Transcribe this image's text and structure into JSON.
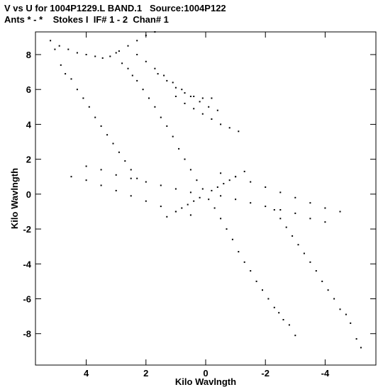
{
  "header": {
    "title_line1": "V vs U for 1004P1229.L BAND.1   Source:1004P122",
    "title_line2": "Ants * - *    Stokes I  IF# 1 - 2  Chan# 1"
  },
  "chart_data": {
    "type": "scatter",
    "title": "V vs U for 1004P1229.L BAND.1   Source:1004P122",
    "subtitle": "Ants * - *    Stokes I  IF# 1 - 2  Chan# 1",
    "xlabel": "Kilo Wavlngth",
    "ylabel": "Kilo Wavlngth",
    "x_reversed": true,
    "xlim": [
      5.7,
      -5.7
    ],
    "ylim": [
      -9.8,
      9.3
    ],
    "xticks": [
      4,
      2,
      0,
      -2,
      -4
    ],
    "xtick_labels": [
      "4",
      "2",
      "0",
      "-2",
      "-4"
    ],
    "yticks": [
      8,
      6,
      4,
      2,
      0,
      -2,
      -4,
      -6,
      -8
    ],
    "ytick_labels": [
      "8",
      "6",
      "4",
      "2",
      "0",
      "-2",
      "-4",
      "-6",
      "-8"
    ],
    "grid": false,
    "marker_color": "#000000",
    "note": "uv-coverage tracks; each baseline drawn as a short radial arc of points and its conjugate (point symmetric about origin)",
    "series": [
      {
        "values": [
          [
            5.2,
            8.8
          ],
          [
            5.05,
            8.3
          ],
          [
            4.85,
            7.4
          ],
          [
            4.7,
            6.9
          ],
          [
            4.5,
            6.6
          ],
          [
            4.3,
            6.0
          ],
          [
            4.1,
            5.5
          ],
          [
            3.9,
            5.0
          ],
          [
            3.7,
            4.4
          ],
          [
            3.5,
            3.9
          ],
          [
            3.3,
            3.4
          ],
          [
            3.1,
            2.9
          ],
          [
            2.9,
            2.4
          ],
          [
            2.7,
            1.9
          ],
          [
            2.5,
            1.4
          ],
          [
            2.3,
            0.9
          ]
        ]
      },
      {
        "values": [
          [
            4.9,
            8.5
          ],
          [
            4.6,
            8.3
          ],
          [
            4.3,
            8.1
          ],
          [
            4.0,
            8.0
          ],
          [
            3.7,
            7.9
          ],
          [
            3.45,
            7.8
          ],
          [
            3.2,
            7.9
          ],
          [
            2.9,
            8.2
          ],
          [
            2.6,
            8.5
          ],
          [
            2.3,
            8.8
          ],
          [
            2.0,
            9.1
          ],
          [
            1.7,
            9.3
          ]
        ]
      },
      {
        "values": [
          [
            3.0,
            8.1
          ],
          [
            2.8,
            7.5
          ],
          [
            2.6,
            7.2
          ],
          [
            2.45,
            6.8
          ],
          [
            2.3,
            6.5
          ],
          [
            2.1,
            6.0
          ],
          [
            1.9,
            5.5
          ],
          [
            1.7,
            5.0
          ],
          [
            1.5,
            4.4
          ],
          [
            1.3,
            3.9
          ],
          [
            1.1,
            3.3
          ],
          [
            0.9,
            2.6
          ],
          [
            0.7,
            2.0
          ],
          [
            0.5,
            1.4
          ],
          [
            0.3,
            0.8
          ],
          [
            0.1,
            0.3
          ]
        ]
      },
      {
        "values": [
          [
            2.3,
            8.0
          ],
          [
            2.0,
            7.6
          ],
          [
            1.7,
            7.2
          ],
          [
            1.4,
            6.8
          ],
          [
            1.1,
            6.4
          ],
          [
            0.8,
            6.0
          ],
          [
            0.5,
            5.6
          ],
          [
            0.2,
            5.3
          ],
          [
            -0.1,
            5.0
          ],
          [
            -0.4,
            4.8
          ]
        ]
      },
      {
        "values": [
          [
            1.6,
            6.9
          ],
          [
            1.3,
            6.5
          ],
          [
            1.0,
            6.1
          ],
          [
            0.7,
            5.8
          ],
          [
            0.4,
            5.6
          ],
          [
            0.1,
            5.5
          ],
          [
            -0.2,
            5.5
          ]
        ]
      },
      {
        "values": [
          [
            1.0,
            5.6
          ],
          [
            0.7,
            5.2
          ],
          [
            0.4,
            4.9
          ],
          [
            0.1,
            4.6
          ],
          [
            -0.2,
            4.3
          ],
          [
            -0.5,
            4.0
          ],
          [
            -0.8,
            3.8
          ],
          [
            -1.1,
            3.6
          ]
        ]
      },
      {
        "values": [
          [
            4.5,
            1.0
          ],
          [
            4.0,
            0.8
          ],
          [
            3.5,
            0.5
          ],
          [
            3.0,
            0.2
          ],
          [
            2.5,
            -0.1
          ],
          [
            2.0,
            -0.4
          ],
          [
            1.5,
            -0.7
          ],
          [
            1.0,
            -1.0
          ],
          [
            0.5,
            -1.2
          ]
        ]
      },
      {
        "values": [
          [
            4.0,
            1.6
          ],
          [
            3.5,
            1.4
          ],
          [
            3.0,
            1.1
          ],
          [
            2.5,
            0.9
          ],
          [
            2.0,
            0.7
          ],
          [
            1.5,
            0.5
          ],
          [
            1.0,
            0.3
          ],
          [
            0.5,
            0.1
          ]
        ]
      },
      {
        "values": [
          [
            1.3,
            -1.3
          ],
          [
            1.0,
            -1.0
          ],
          [
            0.8,
            -0.8
          ],
          [
            0.6,
            -0.6
          ],
          [
            0.4,
            -0.4
          ],
          [
            0.2,
            -0.2
          ]
        ]
      },
      {
        "values": [
          [
            -1.3,
            1.3
          ],
          [
            -1.0,
            1.0
          ],
          [
            -0.8,
            0.8
          ],
          [
            -0.6,
            0.6
          ],
          [
            -0.4,
            0.4
          ],
          [
            -0.2,
            0.2
          ]
        ]
      },
      {
        "values": [
          [
            -5.2,
            -8.8
          ],
          [
            -5.05,
            -8.3
          ],
          [
            -4.85,
            -7.4
          ],
          [
            -4.7,
            -6.9
          ],
          [
            -4.5,
            -6.6
          ],
          [
            -4.3,
            -6.0
          ],
          [
            -4.1,
            -5.5
          ],
          [
            -3.9,
            -5.0
          ],
          [
            -3.7,
            -4.4
          ],
          [
            -3.5,
            -3.9
          ],
          [
            -3.3,
            -3.4
          ],
          [
            -3.1,
            -2.9
          ],
          [
            -2.9,
            -2.4
          ],
          [
            -2.7,
            -1.9
          ],
          [
            -2.5,
            -1.4
          ],
          [
            -2.3,
            -0.9
          ]
        ]
      },
      {
        "values": [
          [
            -3.0,
            -8.1
          ],
          [
            -2.8,
            -7.5
          ],
          [
            -2.6,
            -7.2
          ],
          [
            -2.45,
            -6.8
          ],
          [
            -2.3,
            -6.5
          ],
          [
            -2.1,
            -6.0
          ],
          [
            -1.9,
            -5.5
          ],
          [
            -1.7,
            -5.0
          ],
          [
            -1.5,
            -4.4
          ],
          [
            -1.3,
            -3.9
          ],
          [
            -1.1,
            -3.3
          ],
          [
            -0.9,
            -2.6
          ],
          [
            -0.7,
            -2.0
          ],
          [
            -0.5,
            -1.4
          ],
          [
            -0.3,
            -0.8
          ],
          [
            -0.1,
            -0.3
          ]
        ]
      },
      {
        "values": [
          [
            -4.5,
            -1.0
          ],
          [
            -4.0,
            -0.8
          ],
          [
            -3.5,
            -0.5
          ],
          [
            -3.0,
            -0.2
          ],
          [
            -2.5,
            0.1
          ],
          [
            -2.0,
            0.4
          ],
          [
            -1.5,
            0.7
          ],
          [
            -1.0,
            1.0
          ],
          [
            -0.5,
            1.2
          ]
        ]
      },
      {
        "values": [
          [
            -4.0,
            -1.6
          ],
          [
            -3.5,
            -1.4
          ],
          [
            -3.0,
            -1.1
          ],
          [
            -2.5,
            -0.9
          ],
          [
            -2.0,
            -0.7
          ],
          [
            -1.5,
            -0.5
          ],
          [
            -1.0,
            -0.3
          ],
          [
            -0.5,
            -0.1
          ]
        ]
      }
    ]
  }
}
